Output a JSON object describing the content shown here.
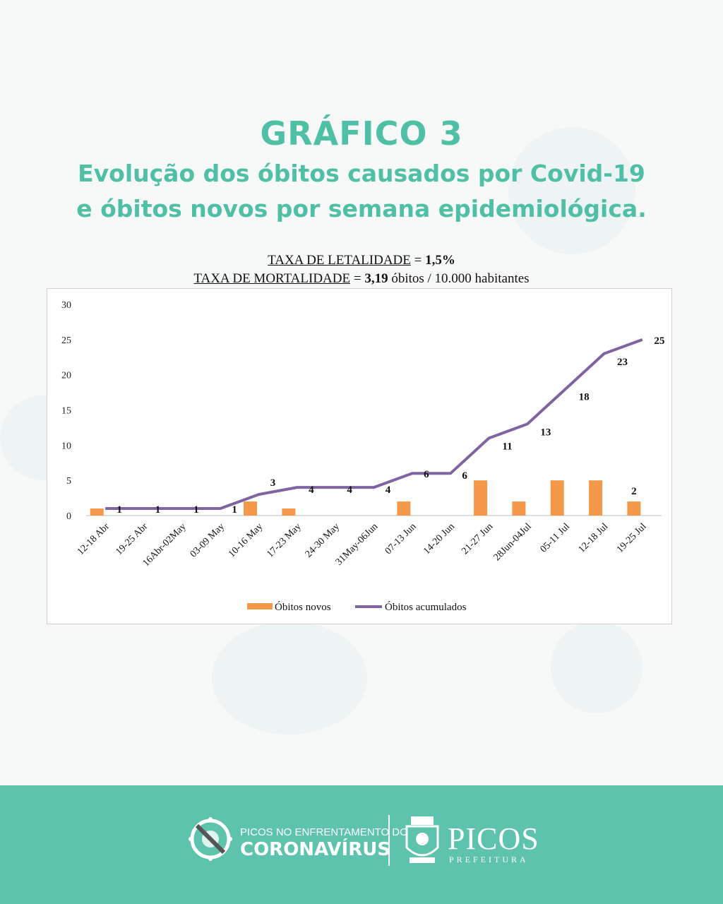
{
  "header": {
    "title": "GRÁFICO 3",
    "subtitle_line1": "Evolução dos óbitos causados por Covid-19",
    "subtitle_line2": "e óbitos novos por semana epidemiológica."
  },
  "rates": {
    "letalidade_label": "TAXA DE LETALIDADE",
    "letalidade_eq": " = ",
    "letalidade_value": "1,5%",
    "mortalidade_label": "TAXA DE MORTALIDADE",
    "mortalidade_eq": " = ",
    "mortalidade_value": "3,19",
    "mortalidade_unit": " óbitos / 10.000 habitantes"
  },
  "chart_data": {
    "type": "bar",
    "categories": [
      "12-18 Abr",
      "19-25 Abr",
      "16Abr-02May",
      "03-09 May",
      "10-16 May",
      "17-23 May",
      "24-30 May",
      "31May-06Jun",
      "07-13 Jun",
      "14-20 Jun",
      "21-27 Jun",
      "28Jun-04Jul",
      "05-11 Jul",
      "12-18 Jul",
      "19-25 Jul"
    ],
    "series": [
      {
        "name": "Óbitos novos",
        "type": "bar",
        "color": "#f4994a",
        "values": [
          1,
          0,
          0,
          0,
          2,
          1,
          0,
          0,
          2,
          0,
          5,
          2,
          5,
          5,
          2
        ]
      },
      {
        "name": "Óbitos acumulados",
        "type": "line",
        "color": "#8064a2",
        "values": [
          1,
          1,
          1,
          1,
          3,
          4,
          4,
          4,
          6,
          6,
          11,
          13,
          18,
          23,
          25
        ]
      }
    ],
    "line_labels": [
      "1",
      "1",
      "1",
      "1",
      "3",
      "4",
      "4",
      "4",
      "6",
      "6",
      "11",
      "13",
      "18",
      "23",
      "25"
    ],
    "bar_labels": [
      {
        "index": 14,
        "text": "2"
      }
    ],
    "ylim": [
      0,
      30
    ],
    "yticks": [
      "0",
      "5",
      "10",
      "15",
      "20",
      "25",
      "30"
    ],
    "legend": "bottom",
    "grid": false
  },
  "footer": {
    "campaign_small": "PICOS NO ENFRENTAMENTO DO",
    "campaign_big": "CORONAVÍRUS",
    "city": "PICOS",
    "city_sub": "PREFEITURA",
    "accent": "#5ec3ad"
  }
}
